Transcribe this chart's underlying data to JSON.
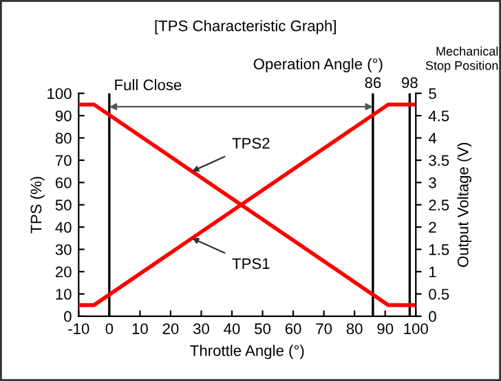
{
  "chart_data": {
    "type": "line",
    "title": "[TPS Characteristic Graph]",
    "xlabel": "Throttle Angle (°)",
    "ylabel": "TPS (%)",
    "y2label": "Output Voltage (V)",
    "series": [
      {
        "x": [
          -10,
          -5,
          91,
          100
        ],
        "values": [
          5,
          5,
          95,
          95
        ],
        "color": "#ff0000"
      },
      {
        "x": [
          -10,
          -5,
          91,
          100
        ],
        "values": [
          95,
          95,
          5,
          5
        ],
        "color": "#ff0000"
      }
    ],
    "xlim": [
      -10,
      100
    ],
    "xticks": [
      -10,
      0,
      10,
      20,
      30,
      40,
      50,
      60,
      70,
      80,
      90,
      100
    ],
    "ylim": [
      0,
      100
    ],
    "yticks": [
      0,
      10,
      20,
      30,
      40,
      50,
      60,
      70,
      80,
      90,
      100
    ],
    "y2lim": [
      0,
      5
    ],
    "y2ticks": [
      0,
      0.5,
      1,
      1.5,
      2,
      2.5,
      3,
      3.5,
      4,
      4.5,
      5
    ],
    "ref_lines": [
      {
        "axis": "x",
        "value": 0,
        "label": "Full Close",
        "color": "#000000"
      },
      {
        "axis": "x",
        "value": 86,
        "label": "86",
        "color": "#000000"
      },
      {
        "axis": "x",
        "value": 98,
        "label": "98",
        "color": "#000000"
      }
    ],
    "annotations": [
      {
        "text": "TPS2",
        "x": 27,
        "y": 65
      },
      {
        "text": "TPS1",
        "x": 27,
        "y": 35
      },
      "Operation Angle (°)",
      "Mechanical\nStop Position"
    ],
    "grid": false,
    "legend": false,
    "marker": "none",
    "line_style": "solid"
  }
}
